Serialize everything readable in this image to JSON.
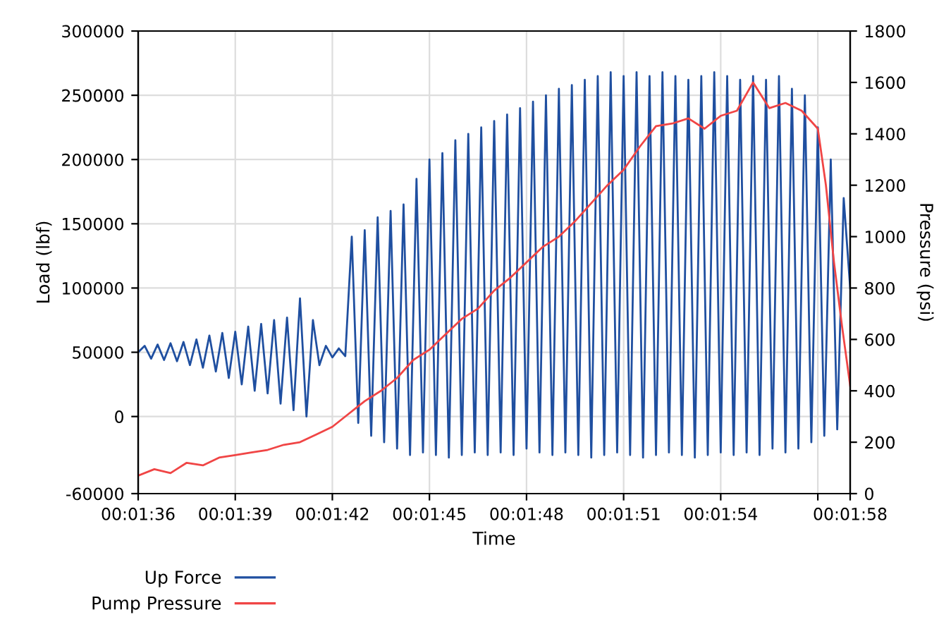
{
  "chart_data": {
    "type": "line",
    "xlabel": "Time",
    "ylabel": "Load (lbf)",
    "y2label": "Pressure (psi)",
    "xlim": [
      96,
      118
    ],
    "xticks": [
      {
        "value": 96,
        "label": "00:01:36"
      },
      {
        "value": 99,
        "label": "00:01:39"
      },
      {
        "value": 102,
        "label": "00:01:42"
      },
      {
        "value": 105,
        "label": "00:01:45"
      },
      {
        "value": 108,
        "label": "00:01:48"
      },
      {
        "value": 111,
        "label": "00:01:51"
      },
      {
        "value": 114,
        "label": "00:01:54"
      },
      {
        "value": 117,
        "label": null
      },
      {
        "value": 118,
        "label": "00:01:58"
      }
    ],
    "ylim": [
      -60000,
      300000
    ],
    "yticks": [
      -60000,
      0,
      50000,
      100000,
      150000,
      200000,
      250000,
      300000
    ],
    "y2lim": [
      0,
      1800
    ],
    "y2ticks": [
      0,
      200,
      400,
      600,
      800,
      1000,
      1200,
      1400,
      1600,
      1800
    ],
    "grid": true,
    "legend": "bottom left",
    "series": [
      {
        "name": "Up Force",
        "color": "#1f4fa0",
        "axis": "y",
        "x": [
          96.0,
          96.2,
          96.4,
          96.6,
          96.8,
          97.0,
          97.2,
          97.4,
          97.6,
          97.8,
          98.0,
          98.2,
          98.4,
          98.6,
          98.8,
          99.0,
          99.2,
          99.4,
          99.6,
          99.8,
          100.0,
          100.2,
          100.4,
          100.6,
          100.8,
          101.0,
          101.2,
          101.4,
          101.6,
          101.8,
          102.0,
          102.2,
          102.4,
          102.6,
          102.8,
          103.0,
          103.2,
          103.4,
          103.6,
          103.8,
          104.0,
          104.2,
          104.4,
          104.6,
          104.8,
          105.0,
          105.2,
          105.4,
          105.6,
          105.8,
          106.0,
          106.2,
          106.4,
          106.6,
          106.8,
          107.0,
          107.2,
          107.4,
          107.6,
          107.8,
          108.0,
          108.2,
          108.4,
          108.6,
          108.8,
          109.0,
          109.2,
          109.4,
          109.6,
          109.8,
          110.0,
          110.2,
          110.4,
          110.6,
          110.8,
          111.0,
          111.2,
          111.4,
          111.6,
          111.8,
          112.0,
          112.2,
          112.4,
          112.6,
          112.8,
          113.0,
          113.2,
          113.4,
          113.6,
          113.8,
          114.0,
          114.2,
          114.4,
          114.6,
          114.8,
          115.0,
          115.2,
          115.4,
          115.6,
          115.8,
          116.0,
          116.2,
          116.4,
          116.6,
          116.8,
          117.0,
          117.2,
          117.4,
          117.6,
          117.8,
          118.0
        ],
        "values": [
          50000,
          55000,
          45000,
          56000,
          44000,
          57000,
          43000,
          58000,
          40000,
          60000,
          38000,
          63000,
          35000,
          65000,
          30000,
          66000,
          25000,
          70000,
          20000,
          72000,
          18000,
          75000,
          10000,
          77000,
          5000,
          92000,
          0,
          75000,
          40000,
          55000,
          46000,
          53000,
          47000,
          140000,
          -5000,
          145000,
          -15000,
          155000,
          -20000,
          160000,
          -25000,
          165000,
          -30000,
          185000,
          -28000,
          200000,
          -30000,
          205000,
          -32000,
          215000,
          -30000,
          220000,
          -28000,
          225000,
          -30000,
          230000,
          -28000,
          235000,
          -30000,
          240000,
          -25000,
          245000,
          -28000,
          250000,
          -30000,
          255000,
          -28000,
          258000,
          -30000,
          262000,
          -32000,
          265000,
          -30000,
          268000,
          -28000,
          265000,
          -30000,
          268000,
          -32000,
          265000,
          -30000,
          268000,
          -28000,
          265000,
          -30000,
          262000,
          -32000,
          265000,
          -30000,
          268000,
          -28000,
          265000,
          -30000,
          262000,
          -28000,
          265000,
          -30000,
          262000,
          -25000,
          265000,
          -28000,
          255000,
          -25000,
          250000,
          -20000,
          225000,
          -15000,
          200000,
          -10000,
          170000,
          100000
        ]
      },
      {
        "name": "Pump Pressure",
        "color": "#f04545",
        "axis": "y2",
        "x": [
          96,
          96.5,
          97,
          97.5,
          98,
          98.5,
          99,
          99.5,
          100,
          100.5,
          101,
          101.5,
          102,
          102.5,
          103,
          103.5,
          104,
          104.5,
          105,
          105.5,
          106,
          106.5,
          107,
          107.5,
          108,
          108.5,
          109,
          109.5,
          110,
          110.5,
          111,
          111.5,
          112,
          112.5,
          113,
          113.5,
          114,
          114.5,
          115,
          115.5,
          116,
          116.5,
          117,
          117.25,
          117.5,
          117.75,
          118
        ],
        "values": [
          70,
          95,
          80,
          120,
          110,
          140,
          150,
          160,
          170,
          190,
          200,
          230,
          260,
          310,
          360,
          400,
          450,
          520,
          560,
          620,
          680,
          720,
          790,
          840,
          900,
          960,
          1000,
          1060,
          1130,
          1200,
          1260,
          1350,
          1430,
          1440,
          1460,
          1420,
          1470,
          1490,
          1600,
          1500,
          1520,
          1490,
          1420,
          1200,
          900,
          650,
          420
        ]
      }
    ]
  }
}
